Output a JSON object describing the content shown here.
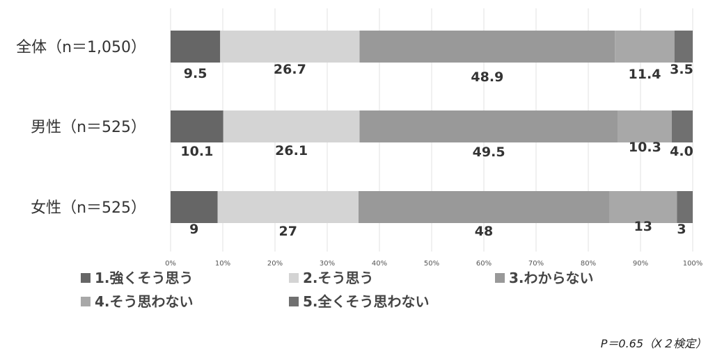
{
  "chart_data": {
    "type": "bar",
    "orientation": "horizontal",
    "stacked": true,
    "categories": [
      "全体（n＝1,050）",
      "男性（n＝525）",
      "女性（n＝525）"
    ],
    "series": [
      {
        "name": "1.強くそう思う",
        "values": [
          9.5,
          10.1,
          9
        ],
        "labels": [
          "9.5",
          "10.1",
          "9"
        ],
        "color": "#666666"
      },
      {
        "name": "2.そう思う",
        "values": [
          26.7,
          26.1,
          27
        ],
        "labels": [
          "26.7",
          "26.1",
          "27"
        ],
        "color": "#d4d4d4"
      },
      {
        "name": "3.わからない",
        "values": [
          48.9,
          49.5,
          48
        ],
        "labels": [
          "48.9",
          "49.5",
          "48"
        ],
        "color": "#999999"
      },
      {
        "name": "4.そう思わない",
        "values": [
          11.4,
          10.3,
          13
        ],
        "labels": [
          "11.4",
          "10.3",
          "13"
        ],
        "color": "#a8a8a8"
      },
      {
        "name": "5.全くそう思わない",
        "values": [
          3.5,
          4.0,
          3
        ],
        "labels": [
          "3.5",
          "4.0",
          "3"
        ],
        "color": "#707070"
      }
    ],
    "xlim": [
      0,
      100
    ],
    "x_ticks": [
      "0%",
      "10%",
      "20%",
      "30%",
      "40%",
      "50%",
      "60%",
      "70%",
      "80%",
      "90%",
      "100%"
    ],
    "grid": true,
    "legend_position": "bottom",
    "annotation": "P＝0.65（Χ２検定）"
  }
}
